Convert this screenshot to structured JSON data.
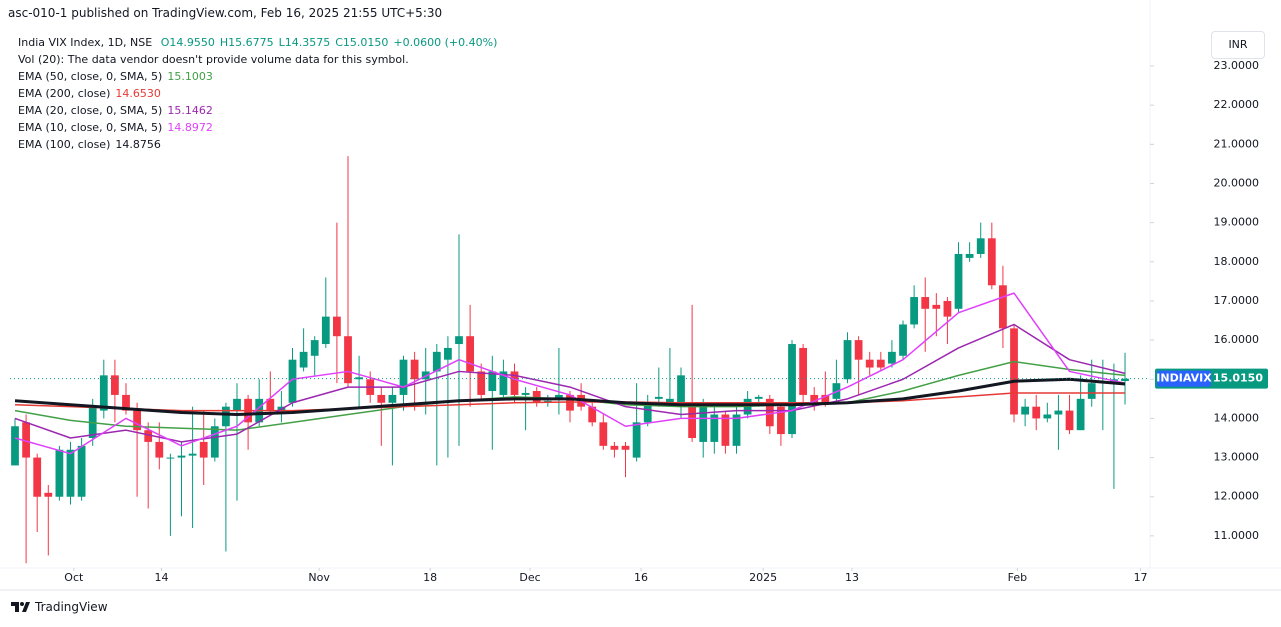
{
  "header": {
    "title": "asc-010-1 published on TradingView.com, Feb 16, 2025 21:55 UTC+5:30"
  },
  "footer": {
    "brand": "TradingView"
  },
  "chart_data": {
    "type": "candlestick",
    "title": "India VIX Index, 1D, NSE",
    "ohlc_legend": [
      "O14.9550",
      "H15.6775",
      "L14.3575",
      "C15.0150",
      "+0.0600 (+0.40%)"
    ],
    "notes": [
      "Vol (20): The data vendor doesn't provide volume data for this symbol."
    ],
    "currency": "INR",
    "up_color": "#089981",
    "down_color": "#f23645",
    "x": [
      0,
      1,
      2,
      3,
      4,
      5,
      6,
      7,
      8,
      9,
      10,
      11,
      12,
      13,
      14,
      15,
      16,
      17,
      18,
      19,
      20,
      21,
      22,
      23,
      24,
      25,
      26,
      27,
      28,
      29,
      30,
      31,
      32,
      33,
      34,
      35,
      36,
      37,
      38,
      39,
      40,
      41,
      42,
      43,
      44,
      45,
      46,
      47,
      48,
      49,
      50,
      51,
      52,
      53,
      54,
      55,
      56,
      57,
      58,
      59,
      60,
      61,
      62,
      63,
      64,
      65,
      66,
      67,
      68,
      69,
      70,
      71,
      72,
      73,
      74,
      75,
      76,
      77,
      78,
      79,
      80,
      81,
      82,
      83,
      84,
      85,
      86,
      87,
      88,
      89,
      90,
      91,
      92,
      93,
      94,
      95,
      96,
      97,
      98,
      99,
      100
    ],
    "open": [
      12.8,
      13.9,
      13.0,
      12.1,
      12.0,
      12.0,
      12.0,
      13.5,
      14.2,
      15.1,
      14.6,
      14.2,
      13.7,
      13.4,
      13.0,
      13.0,
      13.05,
      13.4,
      13.0,
      13.8,
      14.2,
      14.5,
      13.9,
      14.5,
      14.2,
      14.4,
      15.3,
      15.6,
      15.9,
      16.6,
      16.1,
      15.0,
      15.0,
      14.6,
      14.4,
      14.6,
      15.5,
      15.0,
      15.2,
      15.5,
      15.9,
      16.1,
      15.2,
      14.7,
      14.6,
      15.2,
      14.6,
      14.7,
      14.4,
      14.5,
      14.6,
      14.6,
      14.3,
      13.9,
      13.3,
      13.3,
      13.0,
      13.9,
      14.5,
      14.4,
      14.4,
      14.3,
      13.4,
      13.4,
      14.1,
      13.3,
      14.1,
      14.5,
      14.5,
      14.3,
      13.6,
      15.8,
      14.6,
      14.6,
      14.5,
      15.0,
      16.0,
      15.5,
      15.5,
      15.4,
      15.6,
      16.4,
      17.1,
      16.9,
      17.0,
      16.8,
      18.1,
      18.2,
      18.6,
      17.4,
      16.3,
      14.1,
      14.3,
      14.0,
      14.1,
      14.2,
      13.7,
      14.5,
      14.9,
      14.9,
      14.955
    ],
    "high": [
      14.0,
      14.1,
      13.1,
      12.3,
      13.3,
      13.4,
      13.5,
      14.5,
      15.5,
      15.5,
      14.9,
      14.4,
      13.9,
      13.9,
      13.1,
      13.4,
      14.3,
      14.2,
      14.0,
      14.4,
      14.9,
      14.6,
      15.0,
      15.2,
      14.7,
      15.8,
      16.3,
      16.1,
      17.6,
      19.0,
      20.7,
      15.6,
      15.2,
      14.8,
      14.8,
      15.6,
      15.7,
      15.8,
      15.9,
      16.1,
      18.7,
      16.9,
      15.4,
      15.6,
      15.5,
      15.4,
      14.8,
      14.8,
      14.6,
      15.8,
      14.7,
      14.9,
      14.4,
      14.1,
      13.4,
      13.4,
      14.9,
      14.6,
      15.3,
      15.8,
      15.3,
      16.9,
      14.5,
      14.4,
      14.2,
      14.4,
      14.7,
      14.6,
      14.6,
      14.4,
      16.0,
      15.9,
      14.8,
      15.2,
      15.5,
      16.2,
      16.1,
      15.7,
      15.7,
      16.0,
      16.5,
      17.4,
      17.6,
      17.2,
      17.1,
      18.5,
      18.5,
      19.0,
      19.0,
      17.9,
      16.4,
      14.5,
      14.6,
      14.4,
      14.6,
      14.6,
      15.1,
      15.5,
      15.5,
      15.4,
      15.6775
    ],
    "low": [
      12.8,
      10.3,
      11.1,
      10.5,
      11.9,
      11.8,
      11.9,
      13.3,
      14.0,
      13.9,
      14.1,
      12.0,
      11.7,
      12.7,
      11.0,
      11.5,
      11.2,
      12.3,
      12.9,
      10.6,
      11.9,
      13.2,
      13.8,
      14.1,
      13.9,
      14.3,
      15.2,
      15.1,
      15.8,
      14.9,
      14.8,
      14.3,
      14.4,
      13.3,
      12.8,
      14.2,
      14.2,
      14.1,
      12.8,
      13.0,
      13.3,
      14.3,
      14.5,
      13.2,
      14.5,
      14.4,
      13.7,
      14.3,
      14.3,
      14.1,
      13.9,
      14.2,
      13.8,
      13.2,
      13.0,
      12.5,
      12.9,
      13.8,
      14.3,
      14.3,
      14.0,
      13.4,
      13.0,
      13.1,
      13.1,
      13.1,
      14.0,
      14.3,
      13.6,
      13.3,
      13.5,
      14.4,
      14.2,
      14.3,
      14.4,
      14.9,
      14.6,
      15.1,
      15.2,
      15.3,
      15.5,
      16.3,
      15.7,
      16.1,
      15.9,
      16.7,
      18.0,
      18.1,
      17.3,
      15.8,
      13.9,
      13.8,
      13.7,
      13.9,
      13.2,
      13.6,
      13.7,
      14.3,
      13.7,
      12.2,
      14.3575
    ],
    "close": [
      13.8,
      13.0,
      12.0,
      12.0,
      13.2,
      13.2,
      13.3,
      14.3,
      15.1,
      14.6,
      14.2,
      13.7,
      13.4,
      13.0,
      13.0,
      13.05,
      13.1,
      13.0,
      13.8,
      14.3,
      14.5,
      13.9,
      14.5,
      14.2,
      14.3,
      15.5,
      15.7,
      16.0,
      16.6,
      16.1,
      14.9,
      15.05,
      14.6,
      14.4,
      14.6,
      15.5,
      15.0,
      15.2,
      15.7,
      15.8,
      16.1,
      15.2,
      14.6,
      15.2,
      15.2,
      14.6,
      14.65,
      14.4,
      14.45,
      14.6,
      14.2,
      14.3,
      13.9,
      13.3,
      13.2,
      13.2,
      13.9,
      14.4,
      14.55,
      14.5,
      15.1,
      13.5,
      14.3,
      14.1,
      13.3,
      14.1,
      14.5,
      14.55,
      13.8,
      13.6,
      15.9,
      14.6,
      14.4,
      14.4,
      14.9,
      16.0,
      15.5,
      15.3,
      15.3,
      15.7,
      16.4,
      17.1,
      16.8,
      16.8,
      16.6,
      18.2,
      18.2,
      18.6,
      17.4,
      16.3,
      14.1,
      14.3,
      14.0,
      14.1,
      14.2,
      13.7,
      14.5,
      14.9,
      14.95,
      15.0,
      15.015
    ],
    "series": [
      {
        "name": "EMA (50, close, 0, SMA, 5)",
        "legend_value": "15.1003",
        "color": "#43a047",
        "line_width": 1.5,
        "x": [
          0,
          5,
          10,
          15,
          20,
          25,
          30,
          35,
          40,
          45,
          50,
          55,
          60,
          65,
          70,
          75,
          80,
          85,
          90,
          95,
          100
        ],
        "values": [
          14.2,
          13.95,
          13.8,
          13.75,
          13.7,
          13.9,
          14.1,
          14.3,
          14.45,
          14.55,
          14.5,
          14.35,
          14.3,
          14.3,
          14.35,
          14.4,
          14.7,
          15.1,
          15.45,
          15.25,
          15.1
        ]
      },
      {
        "name": "EMA (200, close)",
        "legend_value": "14.6530",
        "color": "#e53935",
        "line_width": 1.5,
        "x": [
          0,
          5,
          10,
          15,
          20,
          25,
          30,
          35,
          40,
          45,
          50,
          55,
          60,
          65,
          70,
          75,
          80,
          85,
          90,
          95,
          100
        ],
        "values": [
          14.35,
          14.3,
          14.25,
          14.2,
          14.2,
          14.2,
          14.25,
          14.3,
          14.35,
          14.4,
          14.42,
          14.42,
          14.4,
          14.4,
          14.4,
          14.4,
          14.45,
          14.55,
          14.65,
          14.65,
          14.65
        ]
      },
      {
        "name": "EMA (20, close, 0, SMA, 5)",
        "legend_value": "15.1462",
        "color": "#9c27b0",
        "line_width": 1.5,
        "x": [
          0,
          5,
          10,
          15,
          20,
          25,
          30,
          35,
          40,
          45,
          50,
          55,
          60,
          65,
          70,
          75,
          80,
          85,
          90,
          95,
          100
        ],
        "values": [
          14.0,
          13.5,
          13.7,
          13.4,
          13.6,
          14.4,
          14.8,
          14.8,
          15.2,
          15.1,
          14.8,
          14.3,
          14.1,
          14.2,
          14.2,
          14.5,
          15.0,
          15.8,
          16.4,
          15.5,
          15.15
        ]
      },
      {
        "name": "EMA (10, close, 0, SMA, 5)",
        "legend_value": "14.8972",
        "color": "#e040fb",
        "line_width": 1.5,
        "x": [
          0,
          5,
          10,
          15,
          20,
          25,
          30,
          35,
          40,
          45,
          50,
          55,
          60,
          65,
          70,
          75,
          80,
          85,
          90,
          95,
          100
        ],
        "values": [
          13.5,
          13.1,
          14.0,
          13.3,
          13.8,
          15.0,
          15.2,
          14.8,
          15.5,
          15.0,
          14.6,
          13.8,
          14.0,
          14.0,
          14.2,
          14.8,
          15.5,
          16.7,
          17.2,
          15.2,
          14.9
        ]
      },
      {
        "name": "EMA (100, close)",
        "legend_value": "14.8756",
        "color": "#131722",
        "line_width": 3,
        "x": [
          0,
          5,
          10,
          15,
          20,
          25,
          30,
          35,
          40,
          45,
          50,
          55,
          60,
          65,
          70,
          75,
          80,
          85,
          90,
          95,
          100
        ],
        "values": [
          14.45,
          14.35,
          14.25,
          14.15,
          14.1,
          14.15,
          14.25,
          14.35,
          14.45,
          14.5,
          14.5,
          14.4,
          14.35,
          14.35,
          14.35,
          14.4,
          14.5,
          14.7,
          14.95,
          15.0,
          14.88
        ]
      }
    ],
    "xlim": [
      -0.45,
      102.25
    ],
    "xticks": [
      {
        "value": 5.3,
        "label": "Oct"
      },
      {
        "value": 13.2,
        "label": "14"
      },
      {
        "value": 27.4,
        "label": "Nov"
      },
      {
        "value": 37.4,
        "label": "18"
      },
      {
        "value": 46.4,
        "label": "Dec"
      },
      {
        "value": 56.4,
        "label": "16"
      },
      {
        "value": 67.4,
        "label": "2025"
      },
      {
        "value": 75.4,
        "label": "13"
      },
      {
        "value": 90.3,
        "label": "Feb"
      },
      {
        "value": 101.4,
        "label": "17"
      }
    ],
    "ylim": [
      10.18,
      23.92
    ],
    "yticks": [
      {
        "value": 11,
        "label": "11.0000"
      },
      {
        "value": 12,
        "label": "12.0000"
      },
      {
        "value": 13,
        "label": "13.0000"
      },
      {
        "value": 14,
        "label": "14.0000"
      },
      {
        "value": 15,
        "label": "15.0000"
      },
      {
        "value": 16,
        "label": "16.0000"
      },
      {
        "value": 17,
        "label": "17.0000"
      },
      {
        "value": 18,
        "label": "18.0000"
      },
      {
        "value": 19,
        "label": "19.0000"
      },
      {
        "value": 20,
        "label": "20.0000"
      },
      {
        "value": 21,
        "label": "21.0000"
      },
      {
        "value": 22,
        "label": "22.0000"
      },
      {
        "value": 23,
        "label": "23.0000"
      }
    ],
    "last_price": {
      "name": "INDIAVIX",
      "value": 15.015,
      "label": "15.0150"
    }
  }
}
